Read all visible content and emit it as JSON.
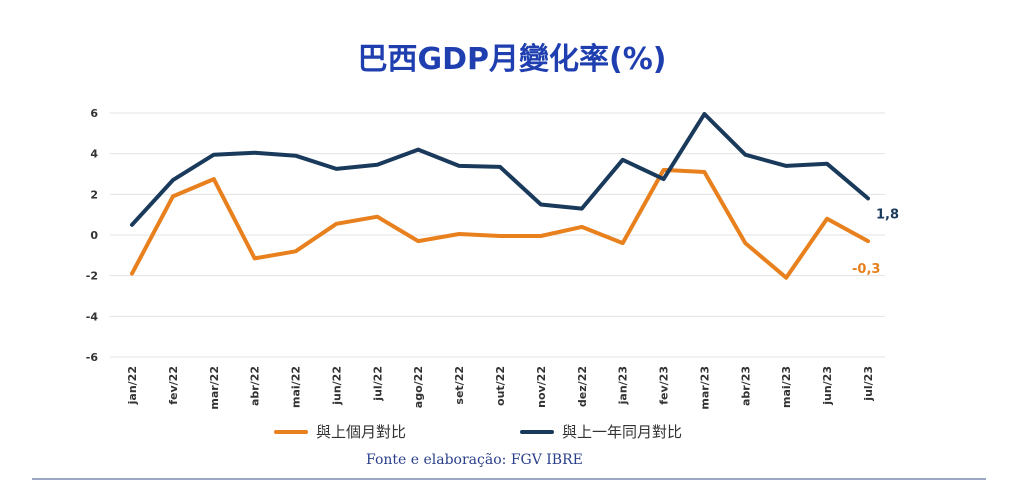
{
  "chart_data": {
    "type": "line",
    "title": "巴西GDP月變化率(%)",
    "categories": [
      "jan/22",
      "fev/22",
      "mar/22",
      "abr/22",
      "mai/22",
      "jun/22",
      "jul/22",
      "ago/22",
      "set/22",
      "out/22",
      "nov/22",
      "dez/22",
      "jan/23",
      "fev/23",
      "mar/23",
      "abr/23",
      "mai/23",
      "jun/23",
      "jul/23"
    ],
    "yticks": [
      "6",
      "4",
      "2",
      "0",
      "-2",
      "-4",
      "-6"
    ],
    "ylim": [
      -6,
      6
    ],
    "grid": true,
    "legend_position": "bottom",
    "series": [
      {
        "name": "與上個月對比",
        "color": "#e8801e",
        "values": [
          -1.9,
          1.9,
          2.75,
          -1.15,
          -0.8,
          0.55,
          0.9,
          -0.3,
          0.05,
          -0.05,
          -0.05,
          0.4,
          -0.4,
          3.2,
          3.1,
          -0.4,
          -2.1,
          0.8,
          -0.3
        ],
        "end_label": "-0,3"
      },
      {
        "name": "與上一年同月對比",
        "color": "#1a3a5c",
        "values": [
          0.5,
          2.7,
          3.95,
          4.05,
          3.9,
          3.25,
          3.45,
          4.2,
          3.4,
          3.35,
          1.5,
          1.3,
          3.7,
          2.75,
          5.95,
          3.95,
          3.4,
          3.5,
          1.8
        ],
        "end_label": "1,8"
      }
    ]
  },
  "source": "Fonte e elaboração: FGV IBRE"
}
